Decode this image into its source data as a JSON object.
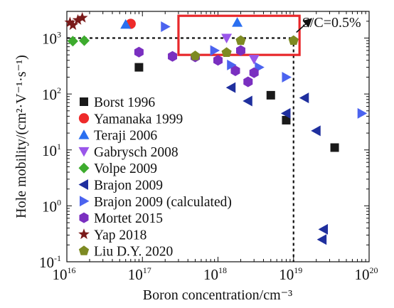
{
  "chart_data": {
    "type": "scatter",
    "xlabel": "Boron concentration/cm⁻³",
    "ylabel": "Hole mobility/(cm²·V⁻¹·s⁻¹)",
    "xscale": "log",
    "yscale": "log",
    "xlim": [
      1e+16,
      1e+20
    ],
    "ylim": [
      0.1,
      3000
    ],
    "x_ticks": [
      {
        "base": "10",
        "exp": "16"
      },
      {
        "base": "10",
        "exp": "17"
      },
      {
        "base": "10",
        "exp": "18"
      },
      {
        "base": "10",
        "exp": "19"
      },
      {
        "base": "10",
        "exp": "20"
      }
    ],
    "y_ticks": [
      {
        "base": "10",
        "exp": "-1"
      },
      {
        "base": "10",
        "exp": "0"
      },
      {
        "base": "10",
        "exp": "1"
      },
      {
        "base": "10",
        "exp": "2"
      },
      {
        "base": "10",
        "exp": "3"
      }
    ],
    "legend_position": "left",
    "annotation": {
      "text": "S/C=0.5%",
      "reference_x": 1e+19,
      "reference_y": 1000
    },
    "highlight_box": {
      "x_range": [
        3e+17,
        1.2e+19
      ],
      "y_range": [
        500,
        2500
      ],
      "color": "#e8282b"
    },
    "series": [
      {
        "name": "Borst 1996",
        "marker": "square",
        "color": "#1a1a1a",
        "points": [
          [
            9e+16,
            300
          ],
          [
            5e+18,
            95
          ],
          [
            8e+18,
            34
          ],
          [
            3.5e+19,
            11
          ]
        ]
      },
      {
        "name": "Yamanaka 1999",
        "marker": "circle",
        "color": "#ee2a2a",
        "points": [
          [
            7e+16,
            1800
          ]
        ]
      },
      {
        "name": "Teraji 2006",
        "marker": "triangle-up",
        "color": "#2a6ff0",
        "points": [
          [
            6e+16,
            1750
          ],
          [
            1.8e+18,
            1900
          ]
        ]
      },
      {
        "name": "Gabrysch 2008",
        "marker": "triangle-down",
        "color": "#9a56ea",
        "points": [
          [
            1.3e+18,
            1000
          ],
          [
            3e+18,
            420
          ]
        ]
      },
      {
        "name": "Volpe 2009",
        "marker": "diamond",
        "color": "#3dab2e",
        "points": [
          [
            1.2e+16,
            880
          ],
          [
            1.7e+16,
            900
          ]
        ]
      },
      {
        "name": "Brajon 2009",
        "marker": "triangle-left",
        "color": "#1f2f9e",
        "points": [
          [
            1.5e+18,
            130
          ],
          [
            2.5e+18,
            75
          ],
          [
            8e+18,
            45
          ],
          [
            1.4e+19,
            85
          ],
          [
            2e+19,
            22
          ],
          [
            2.5e+19,
            0.38
          ],
          [
            2.4e+19,
            0.25
          ]
        ]
      },
      {
        "name": "Brajon 2009 (calculated)",
        "marker": "triangle-right",
        "color": "#4b63ef",
        "points": [
          [
            2e+17,
            1600
          ],
          [
            9e+17,
            600
          ],
          [
            1.5e+18,
            330
          ],
          [
            3.5e+18,
            300
          ],
          [
            8e+18,
            200
          ],
          [
            8e+19,
            45
          ]
        ]
      },
      {
        "name": "Mortet 2015",
        "marker": "hexagon",
        "color": "#7a2fc0",
        "points": [
          [
            9e+16,
            560
          ],
          [
            2.5e+17,
            470
          ],
          [
            5e+17,
            460
          ],
          [
            1e+18,
            400
          ],
          [
            1.7e+18,
            260
          ],
          [
            2.5e+18,
            165
          ],
          [
            3e+18,
            240
          ],
          [
            2e+18,
            600
          ]
        ]
      },
      {
        "name": "Yap 2018",
        "marker": "star",
        "color": "#7a1a1a",
        "points": [
          [
            1.1e+16,
            1900
          ],
          [
            1.4e+16,
            2100
          ],
          [
            1.6e+16,
            2300
          ],
          [
            1.2e+16,
            1700
          ]
        ]
      },
      {
        "name": "Liu D.Y. 2020",
        "marker": "pentagon",
        "color": "#7d8a22",
        "points": [
          [
            5e+17,
            480
          ],
          [
            1.3e+18,
            550
          ],
          [
            2e+18,
            900
          ],
          [
            1e+19,
            900
          ]
        ]
      }
    ]
  }
}
